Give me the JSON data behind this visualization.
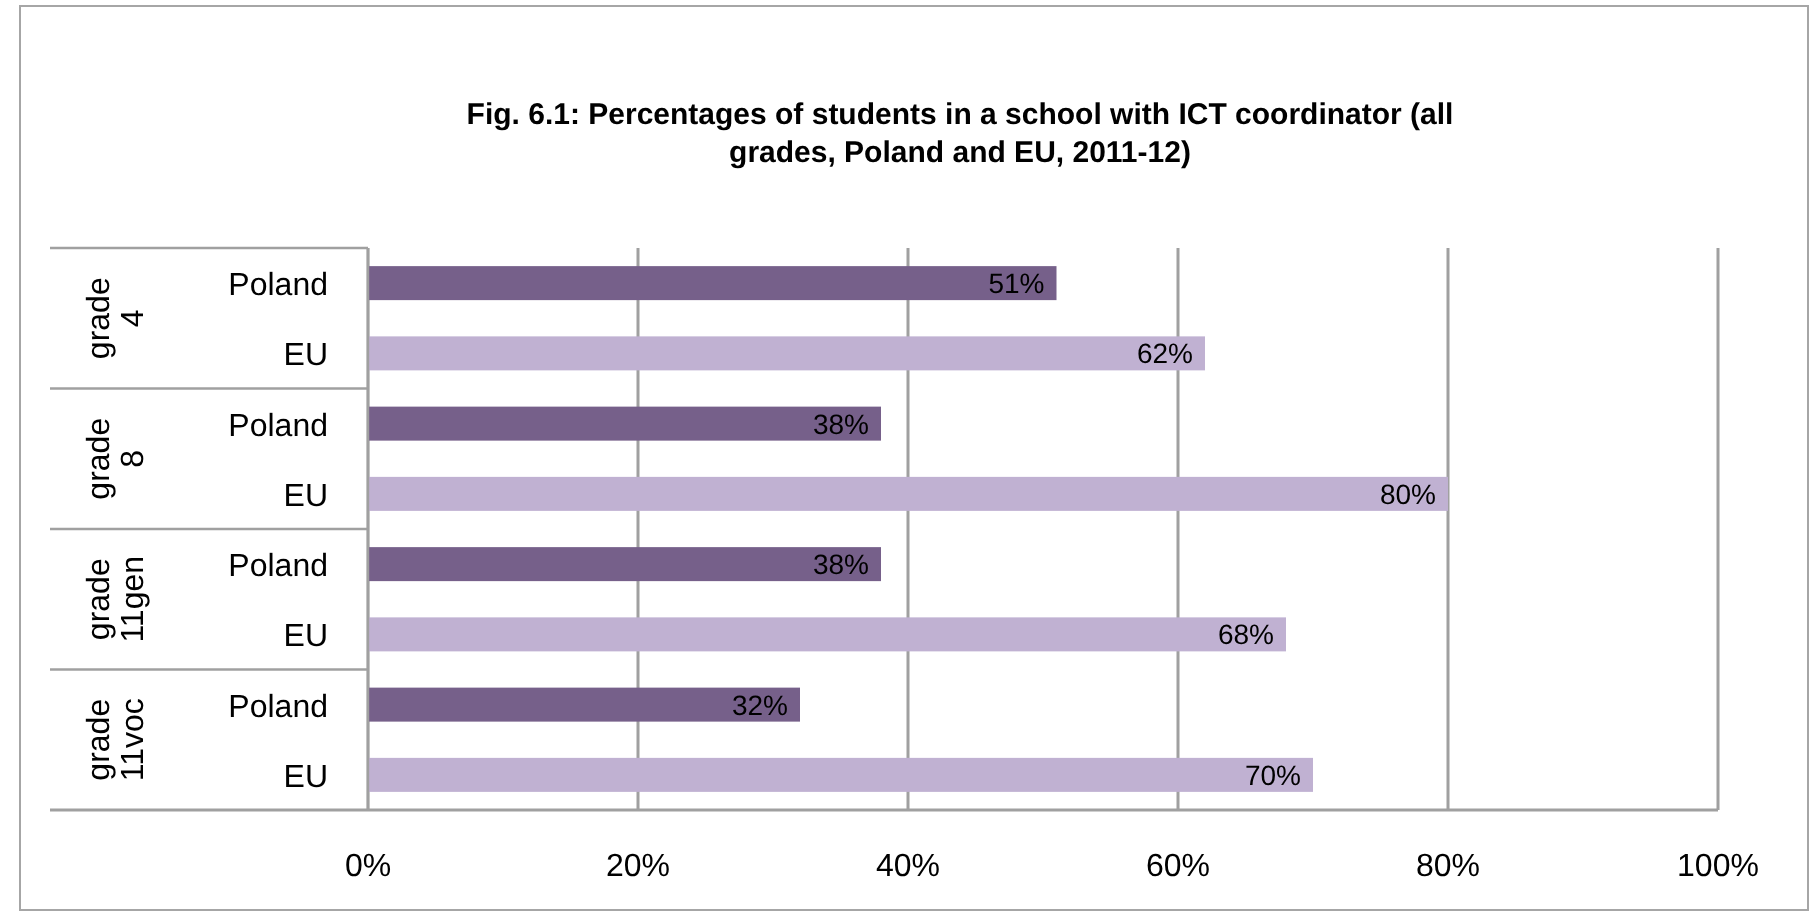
{
  "chart_data": {
    "type": "bar",
    "orientation": "horizontal",
    "title": "Fig. 6.1: Percentages of students in a school with ICT coordinator (all grades, Poland and EU, 2011-12)",
    "categories": [
      "grade 4",
      "grade 8",
      "grade 11gen",
      "grade 11voc"
    ],
    "series": [
      {
        "name": "Poland",
        "color": "#76608a",
        "values": [
          51,
          38,
          38,
          32
        ],
        "value_labels": [
          "51%",
          "38%",
          "38%",
          "32%"
        ]
      },
      {
        "name": "EU",
        "color": "#c0b1d2",
        "values": [
          62,
          80,
          68,
          70
        ],
        "value_labels": [
          "62%",
          "80%",
          "68%",
          "70%"
        ]
      }
    ],
    "xlim": [
      0,
      100
    ],
    "xticks": [
      {
        "value": 0,
        "label": "0%"
      },
      {
        "value": 20,
        "label": "20%"
      },
      {
        "value": 40,
        "label": "40%"
      },
      {
        "value": 60,
        "label": "60%"
      },
      {
        "value": 80,
        "label": "80%"
      },
      {
        "value": 100,
        "label": "100%"
      }
    ],
    "grid": "x",
    "legend": false
  }
}
